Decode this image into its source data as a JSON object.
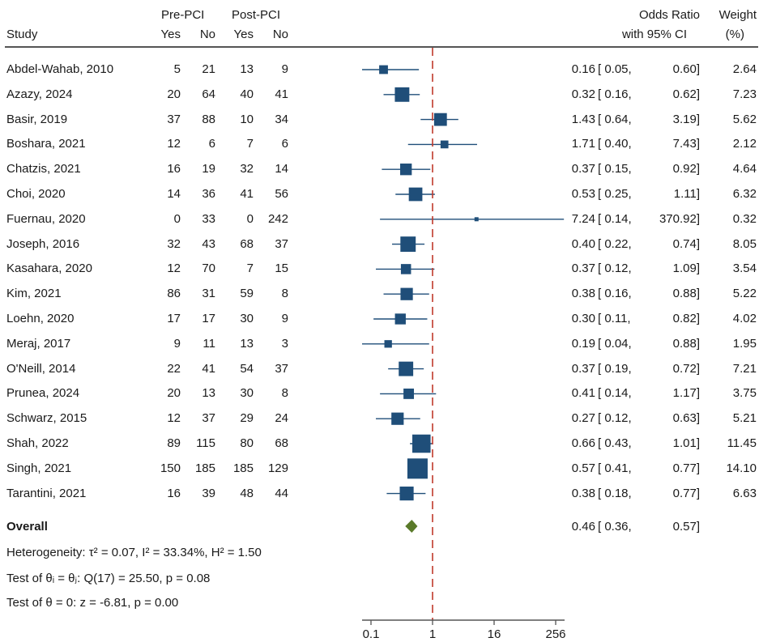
{
  "chart_data": {
    "type": "forest",
    "title": "",
    "headers": {
      "study": "Study",
      "pre_group": "Pre-PCI",
      "post_group": "Post-PCI",
      "yes": "Yes",
      "no": "No",
      "or_line1": "Odds Ratio",
      "or_line2": "with 95% CI",
      "weight_line1": "Weight",
      "weight_line2": "(%)"
    },
    "studies": [
      {
        "study": "Abdel-Wahab, 2010",
        "pre_yes": "5",
        "pre_no": "21",
        "post_yes": "13",
        "post_no": "9",
        "or": 0.16,
        "lo": 0.05,
        "hi": 0.6,
        "or_text": "0.16",
        "lo_text": "[ 0.05,",
        "hi_text": "0.60]",
        "weight": 2.64,
        "weight_text": "2.64"
      },
      {
        "study": "Azazy, 2024",
        "pre_yes": "20",
        "pre_no": "64",
        "post_yes": "40",
        "post_no": "41",
        "or": 0.32,
        "lo": 0.16,
        "hi": 0.62,
        "or_text": "0.32",
        "lo_text": "[ 0.16,",
        "hi_text": "0.62]",
        "weight": 7.23,
        "weight_text": "7.23"
      },
      {
        "study": "Basir, 2019",
        "pre_yes": "37",
        "pre_no": "88",
        "post_yes": "10",
        "post_no": "34",
        "or": 1.43,
        "lo": 0.64,
        "hi": 3.19,
        "or_text": "1.43",
        "lo_text": "[ 0.64,",
        "hi_text": "3.19]",
        "weight": 5.62,
        "weight_text": "5.62"
      },
      {
        "study": "Boshara, 2021",
        "pre_yes": "12",
        "pre_no": "6",
        "post_yes": "7",
        "post_no": "6",
        "or": 1.71,
        "lo": 0.4,
        "hi": 7.43,
        "or_text": "1.71",
        "lo_text": "[ 0.40,",
        "hi_text": "7.43]",
        "weight": 2.12,
        "weight_text": "2.12"
      },
      {
        "study": "Chatzis, 2021",
        "pre_yes": "16",
        "pre_no": "19",
        "post_yes": "32",
        "post_no": "14",
        "or": 0.37,
        "lo": 0.15,
        "hi": 0.92,
        "or_text": "0.37",
        "lo_text": "[ 0.15,",
        "hi_text": "0.92]",
        "weight": 4.64,
        "weight_text": "4.64"
      },
      {
        "study": "Choi, 2020",
        "pre_yes": "14",
        "pre_no": "36",
        "post_yes": "41",
        "post_no": "56",
        "or": 0.53,
        "lo": 0.25,
        "hi": 1.11,
        "or_text": "0.53",
        "lo_text": "[ 0.25,",
        "hi_text": "1.11]",
        "weight": 6.32,
        "weight_text": "6.32"
      },
      {
        "study": "Fuernau, 2020",
        "pre_yes": "0",
        "pre_no": "33",
        "post_yes": "0",
        "post_no": "242",
        "or": 7.24,
        "lo": 0.14,
        "hi": 370.92,
        "or_text": "7.24",
        "lo_text": "[ 0.14,",
        "hi_text": "370.92]",
        "weight": 0.32,
        "weight_text": "0.32"
      },
      {
        "study": "Joseph, 2016",
        "pre_yes": "32",
        "pre_no": "43",
        "post_yes": "68",
        "post_no": "37",
        "or": 0.4,
        "lo": 0.22,
        "hi": 0.74,
        "or_text": "0.40",
        "lo_text": "[ 0.22,",
        "hi_text": "0.74]",
        "weight": 8.05,
        "weight_text": "8.05"
      },
      {
        "study": "Kasahara, 2020",
        "pre_yes": "12",
        "pre_no": "70",
        "post_yes": "7",
        "post_no": "15",
        "or": 0.37,
        "lo": 0.12,
        "hi": 1.09,
        "or_text": "0.37",
        "lo_text": "[ 0.12,",
        "hi_text": "1.09]",
        "weight": 3.54,
        "weight_text": "3.54"
      },
      {
        "study": "Kim, 2021",
        "pre_yes": "86",
        "pre_no": "31",
        "post_yes": "59",
        "post_no": "8",
        "or": 0.38,
        "lo": 0.16,
        "hi": 0.88,
        "or_text": "0.38",
        "lo_text": "[ 0.16,",
        "hi_text": "0.88]",
        "weight": 5.22,
        "weight_text": "5.22"
      },
      {
        "study": "Loehn, 2020",
        "pre_yes": "17",
        "pre_no": "17",
        "post_yes": "30",
        "post_no": "9",
        "or": 0.3,
        "lo": 0.11,
        "hi": 0.82,
        "or_text": "0.30",
        "lo_text": "[ 0.11,",
        "hi_text": "0.82]",
        "weight": 4.02,
        "weight_text": "4.02"
      },
      {
        "study": "Meraj, 2017",
        "pre_yes": "9",
        "pre_no": "11",
        "post_yes": "13",
        "post_no": "3",
        "or": 0.19,
        "lo": 0.04,
        "hi": 0.88,
        "or_text": "0.19",
        "lo_text": "[ 0.04,",
        "hi_text": "0.88]",
        "weight": 1.95,
        "weight_text": "1.95"
      },
      {
        "study": "O'Neill, 2014",
        "pre_yes": "22",
        "pre_no": "41",
        "post_yes": "54",
        "post_no": "37",
        "or": 0.37,
        "lo": 0.19,
        "hi": 0.72,
        "or_text": "0.37",
        "lo_text": "[ 0.19,",
        "hi_text": "0.72]",
        "weight": 7.21,
        "weight_text": "7.21"
      },
      {
        "study": "Prunea, 2024",
        "pre_yes": "20",
        "pre_no": "13",
        "post_yes": "30",
        "post_no": "8",
        "or": 0.41,
        "lo": 0.14,
        "hi": 1.17,
        "or_text": "0.41",
        "lo_text": "[ 0.14,",
        "hi_text": "1.17]",
        "weight": 3.75,
        "weight_text": "3.75"
      },
      {
        "study": "Schwarz, 2015",
        "pre_yes": "12",
        "pre_no": "37",
        "post_yes": "29",
        "post_no": "24",
        "or": 0.27,
        "lo": 0.12,
        "hi": 0.63,
        "or_text": "0.27",
        "lo_text": "[ 0.12,",
        "hi_text": "0.63]",
        "weight": 5.21,
        "weight_text": "5.21"
      },
      {
        "study": "Shah, 2022",
        "pre_yes": "89",
        "pre_no": "115",
        "post_yes": "80",
        "post_no": "68",
        "or": 0.66,
        "lo": 0.43,
        "hi": 1.01,
        "or_text": "0.66",
        "lo_text": "[ 0.43,",
        "hi_text": "1.01]",
        "weight": 11.45,
        "weight_text": "11.45"
      },
      {
        "study": "Singh, 2021",
        "pre_yes": "150",
        "pre_no": "185",
        "post_yes": "185",
        "post_no": "129",
        "or": 0.57,
        "lo": 0.41,
        "hi": 0.77,
        "or_text": "0.57",
        "lo_text": "[ 0.41,",
        "hi_text": "0.77]",
        "weight": 14.1,
        "weight_text": "14.10"
      },
      {
        "study": "Tarantini, 2021",
        "pre_yes": "16",
        "pre_no": "39",
        "post_yes": "48",
        "post_no": "44",
        "or": 0.38,
        "lo": 0.18,
        "hi": 0.77,
        "or_text": "0.38",
        "lo_text": "[ 0.18,",
        "hi_text": "0.77]",
        "weight": 6.63,
        "weight_text": "6.63"
      }
    ],
    "overall": {
      "label": "Overall",
      "or": 0.46,
      "lo": 0.36,
      "hi": 0.57,
      "or_text": "0.46",
      "lo_text": "[ 0.36,",
      "hi_text": "0.57]"
    },
    "footnotes": [
      "Heterogeneity: τ² = 0.07, I² = 33.34%, H² = 1.50",
      "Test of θᵢ = θⱼ: Q(17) = 25.50, p = 0.08",
      "Test of θ = 0: z = -6.81, p = 0.00"
    ],
    "x_axis": {
      "scale": "log",
      "ticks": [
        0.1,
        1,
        16,
        256
      ],
      "tick_labels": [
        "0.1",
        "1",
        "16",
        "256"
      ],
      "reference_line": 1,
      "xlabel": ""
    },
    "colors": {
      "marker": "#1f4e79",
      "ci_line": "#1f4e79",
      "overall_diamond": "#5a7a2a",
      "reference_line": "#c0392b",
      "axis": "#555555",
      "text": "#1a1a1a"
    },
    "grid": false,
    "legend": "none"
  }
}
